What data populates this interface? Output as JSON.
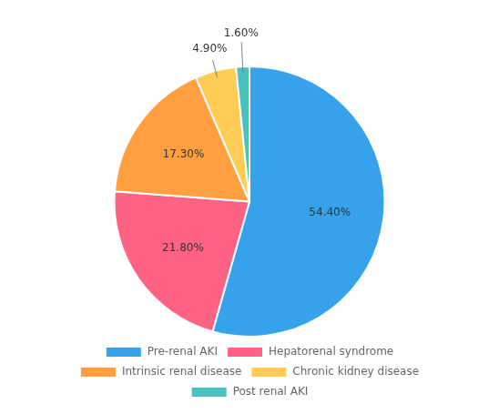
{
  "chart_data": {
    "type": "pie",
    "categories": [
      "Pre-renal AKI",
      "Hepatorenal syndrome",
      "Intrinsic renal disease",
      "Chronic kidney disease",
      "Post renal AKI"
    ],
    "values": [
      54.4,
      21.8,
      17.3,
      4.9,
      1.6
    ],
    "value_labels": [
      "54.40%",
      "21.80%",
      "17.30%",
      "4.90%",
      "1.60%"
    ],
    "data_labels": true,
    "legend": "bottom"
  }
}
